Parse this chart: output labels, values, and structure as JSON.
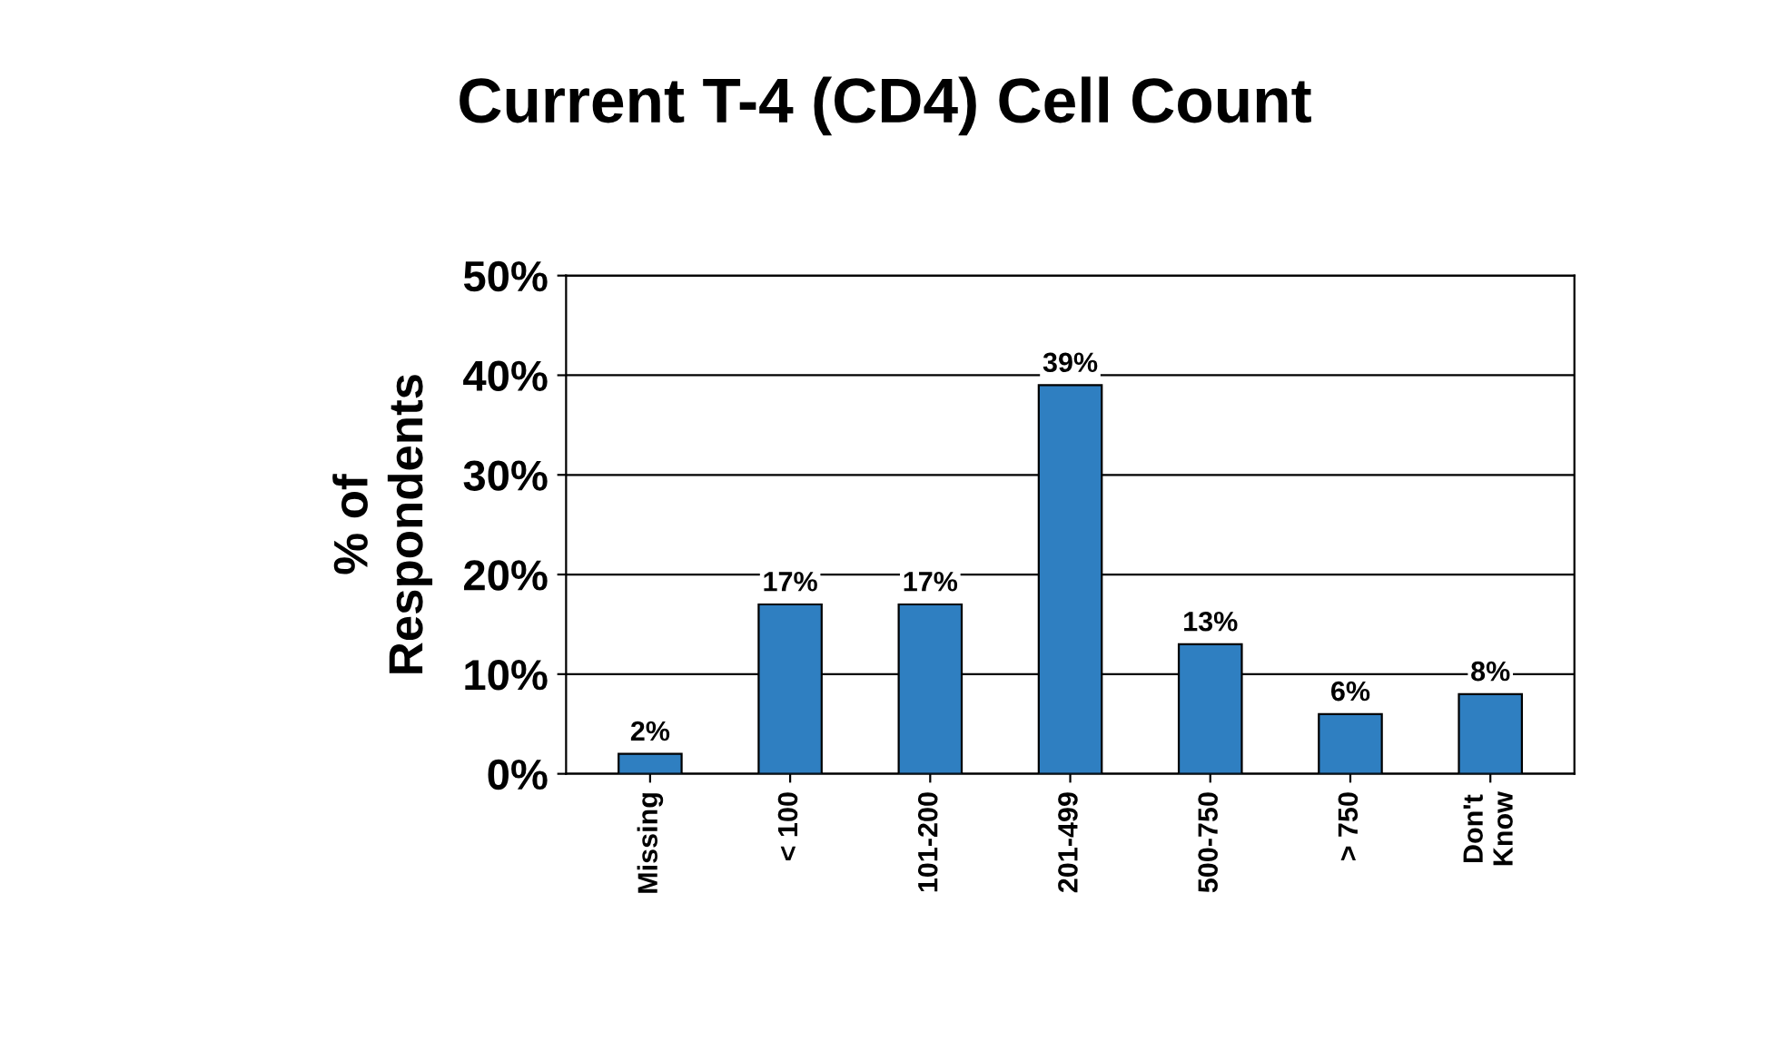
{
  "chart_data": {
    "type": "bar",
    "title": "Current T-4 (CD4) Cell Count",
    "ylabel": "% of\nRespondents",
    "categories": [
      "Missing",
      "< 100",
      "101-200",
      "201-499",
      "500-750",
      "> 750",
      "Don't\nKnow"
    ],
    "values": [
      2,
      17,
      17,
      39,
      13,
      6,
      8
    ],
    "value_labels": [
      "2%",
      "17%",
      "17%",
      "39%",
      "13%",
      "6%",
      "8%"
    ],
    "color": "#2f7fc1",
    "ylim": [
      0,
      50
    ],
    "yticks": [
      {
        "value": 0,
        "label": "0%"
      },
      {
        "value": 10,
        "label": "10%"
      },
      {
        "value": 20,
        "label": "20%"
      },
      {
        "value": 30,
        "label": "30%"
      },
      {
        "value": 40,
        "label": "40%"
      },
      {
        "value": 50,
        "label": "50%"
      }
    ],
    "grid": "y",
    "legend": false
  }
}
